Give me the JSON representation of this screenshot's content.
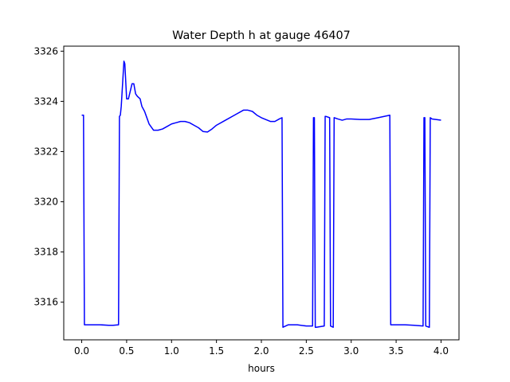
{
  "chart_data": {
    "type": "line",
    "title": "Water Depth h at gauge 46407",
    "xlabel": "hours",
    "ylabel": "",
    "xlim": [
      -0.2,
      4.2
    ],
    "ylim": [
      3314.5,
      3326.2
    ],
    "x_ticks": [
      0.0,
      0.5,
      1.0,
      1.5,
      2.0,
      2.5,
      3.0,
      3.5,
      4.0
    ],
    "x_tick_labels": [
      "0.0",
      "0.5",
      "1.0",
      "1.5",
      "2.0",
      "2.5",
      "3.0",
      "3.5",
      "4.0"
    ],
    "y_ticks": [
      3316,
      3318,
      3320,
      3322,
      3324,
      3326
    ],
    "y_tick_labels": [
      "3316",
      "3318",
      "3320",
      "3322",
      "3324",
      "3326"
    ],
    "grid": false,
    "series": [
      {
        "color": "#0000ff",
        "x": [
          0.0,
          0.02,
          0.03,
          0.1,
          0.2,
          0.3,
          0.35,
          0.41,
          0.42,
          0.43,
          0.44,
          0.46,
          0.47,
          0.48,
          0.49,
          0.5,
          0.52,
          0.54,
          0.56,
          0.58,
          0.6,
          0.62,
          0.65,
          0.67,
          0.7,
          0.72,
          0.75,
          0.8,
          0.85,
          0.9,
          0.95,
          1.0,
          1.05,
          1.1,
          1.15,
          1.2,
          1.25,
          1.3,
          1.35,
          1.4,
          1.45,
          1.5,
          1.6,
          1.7,
          1.8,
          1.85,
          1.9,
          1.95,
          2.0,
          2.1,
          2.15,
          2.2,
          2.23,
          2.24,
          2.3,
          2.4,
          2.5,
          2.57,
          2.58,
          2.59,
          2.6,
          2.61,
          2.7,
          2.71,
          2.72,
          2.76,
          2.77,
          2.8,
          2.81,
          2.85,
          2.9,
          2.95,
          3.0,
          3.1,
          3.2,
          3.3,
          3.43,
          3.44,
          3.6,
          3.7,
          3.8,
          3.81,
          3.82,
          3.83,
          3.87,
          3.88,
          3.9,
          4.0
        ],
        "y": [
          3323.45,
          3323.45,
          3315.1,
          3315.1,
          3315.1,
          3315.08,
          3315.08,
          3315.1,
          3323.4,
          3323.45,
          3323.8,
          3325.0,
          3325.6,
          3325.5,
          3324.8,
          3324.1,
          3324.1,
          3324.4,
          3324.7,
          3324.7,
          3324.3,
          3324.2,
          3324.1,
          3323.8,
          3323.6,
          3323.4,
          3323.1,
          3322.85,
          3322.85,
          3322.9,
          3323.0,
          3323.1,
          3323.15,
          3323.2,
          3323.2,
          3323.15,
          3323.05,
          3322.95,
          3322.8,
          3322.78,
          3322.9,
          3323.05,
          3323.25,
          3323.45,
          3323.65,
          3323.65,
          3323.6,
          3323.45,
          3323.35,
          3323.2,
          3323.2,
          3323.3,
          3323.35,
          3315.0,
          3315.1,
          3315.1,
          3315.05,
          3315.05,
          3323.35,
          3323.35,
          3315.0,
          3315.0,
          3315.05,
          3323.4,
          3323.4,
          3323.35,
          3315.05,
          3315.0,
          3323.35,
          3323.3,
          3323.25,
          3323.3,
          3323.3,
          3323.28,
          3323.28,
          3323.35,
          3323.45,
          3315.1,
          3315.1,
          3315.08,
          3315.05,
          3323.35,
          3323.35,
          3315.05,
          3315.0,
          3323.35,
          3323.3,
          3323.25
        ]
      }
    ]
  }
}
